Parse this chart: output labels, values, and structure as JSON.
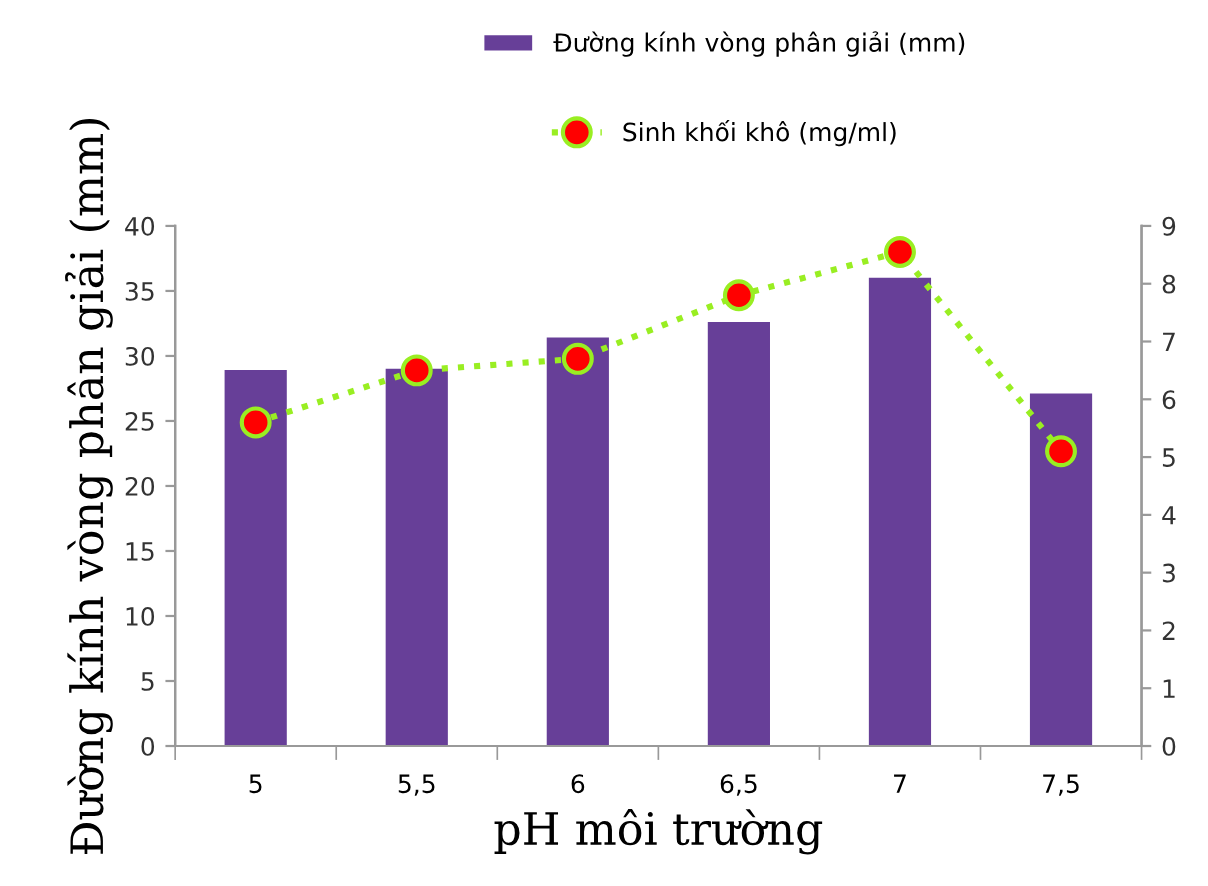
{
  "chart_data": {
    "type": "bar",
    "xlabel": "pH môi trường",
    "ylabel": "Đường kính vòng phân giải (mm)",
    "categories": [
      "5",
      "5,5",
      "6",
      "6,5",
      "7",
      "7,5"
    ],
    "series": [
      {
        "name": "Đường kính vòng phân giải (mm)",
        "color": "#673f98",
        "values": [
          29.0,
          29.1,
          31.5,
          32.7,
          36.1,
          27.2
        ]
      },
      {
        "name": "Sinh khối khô (mg/ml)",
        "type": "line",
        "axis": "y2",
        "color": "#99ee22",
        "marker": "circle",
        "line_style": "dotted",
        "values": [
          5.6,
          6.5,
          6.7,
          7.8,
          8.55,
          5.1
        ]
      }
    ],
    "ylim": [
      0,
      40
    ],
    "yticks": [
      0,
      5,
      10,
      15,
      20,
      25,
      30,
      35,
      40
    ],
    "y2lim": [
      0,
      9
    ],
    "y2ticks": [
      0,
      1,
      2,
      3,
      4,
      5,
      6,
      7,
      8,
      9
    ],
    "grid": false,
    "legend": "top"
  }
}
